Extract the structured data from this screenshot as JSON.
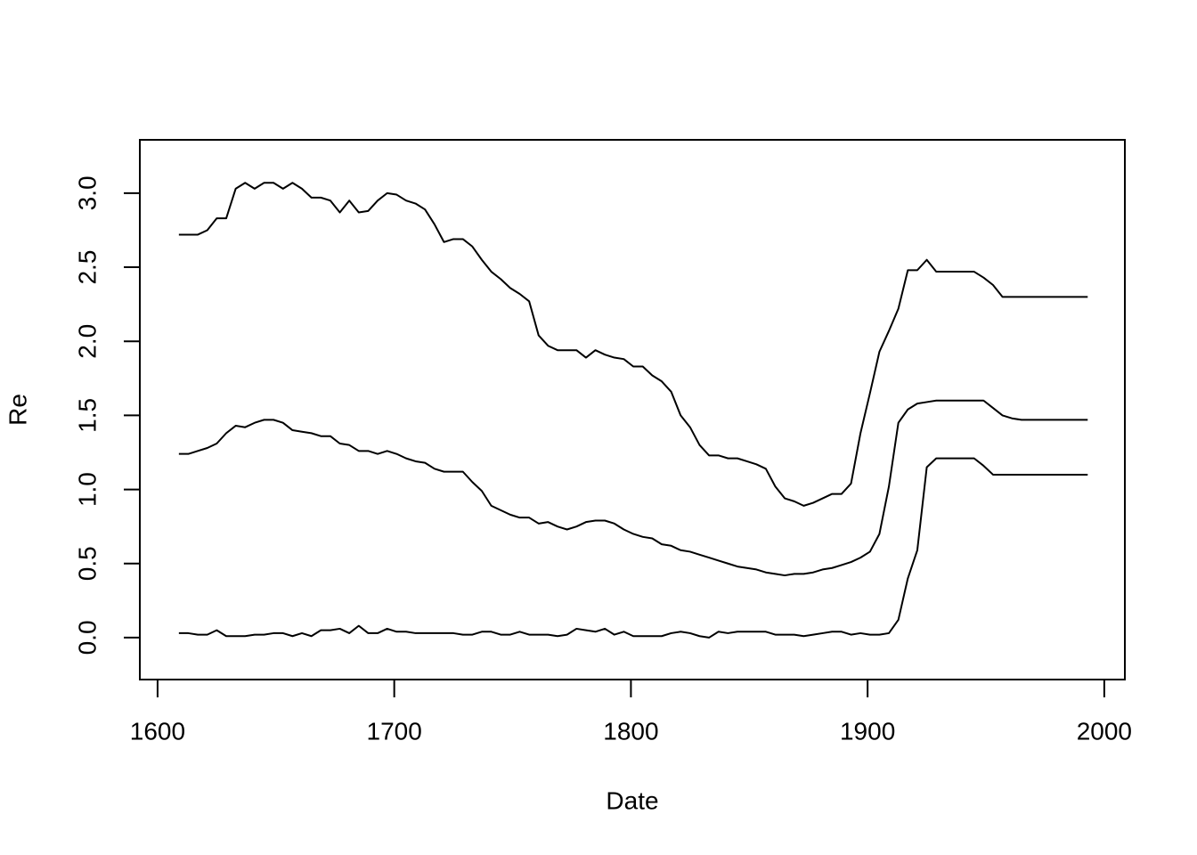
{
  "chart_data": {
    "type": "line",
    "xlabel": "Date",
    "ylabel": "Re",
    "x": [
      1609,
      1613,
      1617,
      1621,
      1625,
      1629,
      1633,
      1637,
      1641,
      1645,
      1649,
      1653,
      1657,
      1661,
      1665,
      1669,
      1673,
      1677,
      1681,
      1685,
      1689,
      1693,
      1697,
      1701,
      1705,
      1709,
      1713,
      1717,
      1721,
      1725,
      1729,
      1733,
      1737,
      1741,
      1745,
      1749,
      1753,
      1757,
      1761,
      1765,
      1769,
      1773,
      1777,
      1781,
      1785,
      1789,
      1793,
      1797,
      1801,
      1805,
      1809,
      1813,
      1817,
      1821,
      1825,
      1829,
      1833,
      1837,
      1841,
      1845,
      1849,
      1853,
      1857,
      1861,
      1865,
      1869,
      1873,
      1877,
      1881,
      1885,
      1889,
      1893,
      1897,
      1901,
      1905,
      1909,
      1913,
      1917,
      1921,
      1925,
      1929,
      1933,
      1937,
      1941,
      1945,
      1949,
      1953,
      1957,
      1961,
      1965,
      1969,
      1973,
      1977,
      1981,
      1985,
      1989,
      1993
    ],
    "series": [
      {
        "color": "#000000",
        "values": [
          2.72,
          2.72,
          2.72,
          2.75,
          2.83,
          2.83,
          3.03,
          3.07,
          3.03,
          3.07,
          3.07,
          3.03,
          3.07,
          3.03,
          2.97,
          2.97,
          2.95,
          2.87,
          2.95,
          2.87,
          2.88,
          2.95,
          3.0,
          2.99,
          2.95,
          2.93,
          2.89,
          2.79,
          2.67,
          2.69,
          2.69,
          2.64,
          2.55,
          2.47,
          2.42,
          2.36,
          2.32,
          2.27,
          2.04,
          1.97,
          1.94,
          1.94,
          1.94,
          1.89,
          1.94,
          1.91,
          1.89,
          1.88,
          1.83,
          1.83,
          1.77,
          1.73,
          1.66,
          1.5,
          1.42,
          1.3,
          1.23,
          1.23,
          1.21,
          1.21,
          1.19,
          1.17,
          1.14,
          1.02,
          0.94,
          0.92,
          0.89,
          0.91,
          0.94,
          0.97,
          0.97,
          1.04,
          1.38,
          1.65,
          1.93,
          2.07,
          2.22,
          2.48,
          2.48,
          2.55,
          2.47,
          2.47,
          2.47,
          2.47,
          2.47,
          2.43,
          2.38,
          2.3,
          2.3,
          2.3,
          2.3,
          2.3,
          2.3,
          2.3,
          2.3,
          2.3,
          2.3
        ]
      },
      {
        "color": "#000000",
        "values": [
          1.24,
          1.24,
          1.26,
          1.28,
          1.31,
          1.38,
          1.43,
          1.42,
          1.45,
          1.47,
          1.47,
          1.45,
          1.4,
          1.39,
          1.38,
          1.36,
          1.36,
          1.31,
          1.3,
          1.26,
          1.26,
          1.24,
          1.26,
          1.24,
          1.21,
          1.19,
          1.18,
          1.14,
          1.12,
          1.12,
          1.12,
          1.05,
          0.99,
          0.89,
          0.86,
          0.83,
          0.81,
          0.81,
          0.77,
          0.78,
          0.75,
          0.73,
          0.75,
          0.78,
          0.79,
          0.79,
          0.77,
          0.73,
          0.7,
          0.68,
          0.67,
          0.63,
          0.62,
          0.59,
          0.58,
          0.56,
          0.54,
          0.52,
          0.5,
          0.48,
          0.47,
          0.46,
          0.44,
          0.43,
          0.42,
          0.43,
          0.43,
          0.44,
          0.46,
          0.47,
          0.49,
          0.51,
          0.54,
          0.58,
          0.7,
          1.02,
          1.45,
          1.54,
          1.58,
          1.59,
          1.6,
          1.6,
          1.6,
          1.6,
          1.6,
          1.6,
          1.55,
          1.5,
          1.48,
          1.47,
          1.47,
          1.47,
          1.47,
          1.47,
          1.47,
          1.47,
          1.47
        ]
      },
      {
        "color": "#000000",
        "values": [
          0.03,
          0.03,
          0.02,
          0.02,
          0.05,
          0.01,
          0.01,
          0.01,
          0.02,
          0.02,
          0.03,
          0.03,
          0.01,
          0.03,
          0.01,
          0.05,
          0.05,
          0.06,
          0.03,
          0.08,
          0.03,
          0.03,
          0.06,
          0.04,
          0.04,
          0.03,
          0.03,
          0.03,
          0.03,
          0.03,
          0.02,
          0.02,
          0.04,
          0.04,
          0.02,
          0.02,
          0.04,
          0.02,
          0.02,
          0.02,
          0.01,
          0.02,
          0.06,
          0.05,
          0.04,
          0.06,
          0.02,
          0.04,
          0.01,
          0.01,
          0.01,
          0.01,
          0.03,
          0.04,
          0.03,
          0.01,
          0.0,
          0.04,
          0.03,
          0.04,
          0.04,
          0.04,
          0.04,
          0.02,
          0.02,
          0.02,
          0.01,
          0.02,
          0.03,
          0.04,
          0.04,
          0.02,
          0.03,
          0.02,
          0.02,
          0.03,
          0.12,
          0.4,
          0.59,
          1.15,
          1.21,
          1.21,
          1.21,
          1.21,
          1.21,
          1.16,
          1.1,
          1.1,
          1.1,
          1.1,
          1.1,
          1.1,
          1.1,
          1.1,
          1.1,
          1.1,
          1.1
        ]
      }
    ],
    "xlim": [
      1592.5,
      2008.7
    ],
    "ylim": [
      -0.283,
      3.36
    ],
    "xticks": [
      1600,
      1700,
      1800,
      1900,
      2000
    ],
    "yticks": [
      {
        "value": 0,
        "label": "0.0"
      },
      0.5,
      {
        "value": 1,
        "label": "1.0"
      },
      1.5,
      {
        "value": 2,
        "label": "2.0"
      },
      2.5,
      {
        "value": 3,
        "label": "3.0"
      }
    ]
  }
}
